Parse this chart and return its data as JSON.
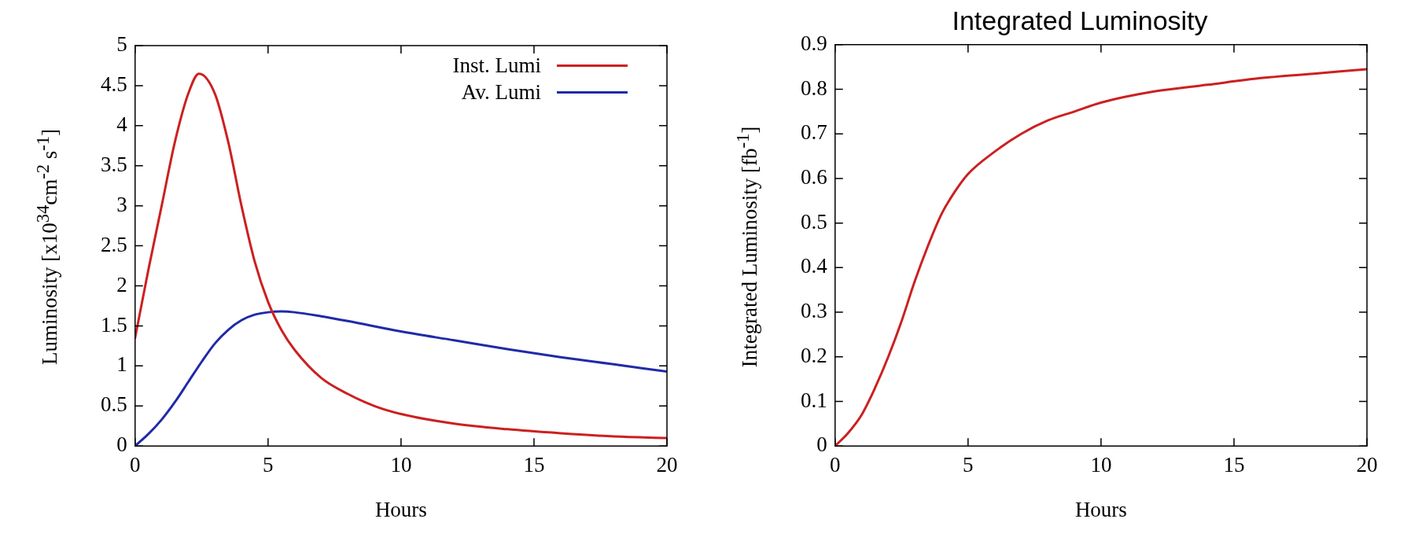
{
  "chart_data": [
    {
      "type": "line",
      "xlabel": "Hours",
      "ylabel": "Luminosity [x10$^{34}$cm$^{-2}$ s$^{-1}$]",
      "xlim": [
        0,
        20
      ],
      "xticks": [
        0,
        5,
        10,
        15,
        20
      ],
      "ylim": [
        0,
        5
      ],
      "yticks": [
        0,
        0.5,
        1,
        1.5,
        2,
        2.5,
        3,
        3.5,
        4,
        4.5,
        5
      ],
      "grid": false,
      "legend": "top right",
      "marker": "none",
      "line_style": "solid",
      "series": [
        {
          "name": "Inst. Lumi",
          "color": "#cc2020",
          "x": [
            0,
            0.5,
            1,
            1.5,
            2,
            2.4,
            3,
            3.5,
            4,
            4.5,
            5,
            5.5,
            6,
            7,
            8,
            9,
            10,
            12,
            14,
            16,
            18,
            20
          ],
          "values": [
            1.35,
            2.2,
            3.0,
            3.8,
            4.4,
            4.65,
            4.4,
            3.8,
            3.0,
            2.3,
            1.8,
            1.45,
            1.2,
            0.85,
            0.65,
            0.5,
            0.4,
            0.28,
            0.21,
            0.16,
            0.12,
            0.1
          ]
        },
        {
          "name": "Av. Lumi",
          "color": "#1f2aa8",
          "x": [
            0,
            0.5,
            1,
            1.5,
            2,
            2.5,
            3,
            3.5,
            4,
            4.5,
            5,
            5.5,
            6,
            7,
            8,
            10,
            12,
            14,
            16,
            18,
            20
          ],
          "values": [
            0,
            0.15,
            0.33,
            0.55,
            0.8,
            1.05,
            1.28,
            1.45,
            1.57,
            1.64,
            1.67,
            1.68,
            1.67,
            1.62,
            1.56,
            1.43,
            1.32,
            1.21,
            1.11,
            1.02,
            0.93
          ]
        }
      ]
    },
    {
      "type": "line",
      "title": "Integrated Luminosity",
      "xlabel": "Hours",
      "ylabel": "Integrated Luminosity [fb$^{-1}$]",
      "xlim": [
        0,
        20
      ],
      "xticks": [
        0,
        5,
        10,
        15,
        20
      ],
      "ylim": [
        0,
        0.9
      ],
      "yticks": [
        0,
        0.1,
        0.2,
        0.3,
        0.4,
        0.5,
        0.6,
        0.7,
        0.8,
        0.9
      ],
      "grid": false,
      "marker": "none",
      "line_style": "solid",
      "series": [
        {
          "color": "#cc2020",
          "x": [
            0,
            0.5,
            1,
            1.5,
            2,
            2.5,
            3,
            3.5,
            4,
            4.5,
            5,
            6,
            7,
            8,
            9,
            10,
            12,
            14,
            16,
            18,
            20
          ],
          "values": [
            0,
            0.03,
            0.07,
            0.13,
            0.2,
            0.28,
            0.37,
            0.45,
            0.52,
            0.57,
            0.61,
            0.66,
            0.7,
            0.73,
            0.75,
            0.77,
            0.795,
            0.81,
            0.825,
            0.835,
            0.845
          ]
        }
      ]
    }
  ]
}
